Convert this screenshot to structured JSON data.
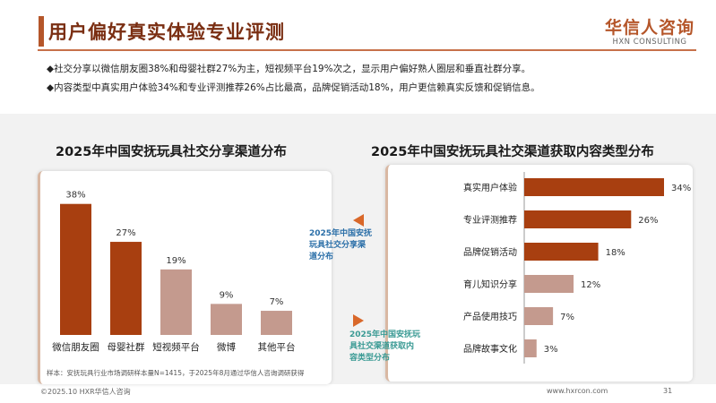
{
  "header": {
    "title": "用户偏好真实体验专业评测",
    "logo_main": "华信人咨询",
    "logo_sub": "HXN CONSULTING"
  },
  "bullets": [
    "◆社交分享以微信朋友圈38%和母婴社群27%为主，短视频平台19%次之，显示用户偏好熟人圈层和垂直社群分享。",
    "◆内容类型中真实用户体验34%和专业评测推荐26%占比最高，品牌促销活动18%，用户更信赖真实反馈和促销信息。"
  ],
  "left_title": "2025年中国安抚玩具社交分享渠道分布",
  "right_title": "2025年中国安抚玩具社交渠道获取内容类型分布",
  "arrow_upper_text": [
    "2025年中国安抚",
    "玩具社交分享渠",
    "道分布"
  ],
  "arrow_lower_text": [
    "2025年中国安抚玩",
    "具社交渠道获取内",
    "容类型分布"
  ],
  "note": "样本：安抚玩具行业市场调研样本量N=1415，于2025年8月通过华信人咨询调研获得",
  "footer": {
    "left": "©2025.10 HXR华信人咨询",
    "url": "www.hxrcon.com",
    "page": "31"
  },
  "chart_data": [
    {
      "type": "bar",
      "title": "2025年中国安抚玩具社交分享渠道分布",
      "categories": [
        "微信朋友圈",
        "母婴社群",
        "短视频平台",
        "微博",
        "其他平台"
      ],
      "values": [
        38,
        27,
        19,
        9,
        7
      ],
      "labels": [
        "38%",
        "27%",
        "19%",
        "9%",
        "7%"
      ],
      "colors": [
        "#a83f10",
        "#a83f10",
        "#c49a8e",
        "#c49a8e",
        "#c49a8e"
      ],
      "ylim": [
        0,
        40
      ]
    },
    {
      "type": "bar",
      "orientation": "horizontal",
      "title": "2025年中国安抚玩具社交渠道获取内容类型分布",
      "categories": [
        "真实用户体验",
        "专业评测推荐",
        "品牌促销活动",
        "育儿知识分享",
        "产品使用技巧",
        "品牌故事文化"
      ],
      "values": [
        34,
        26,
        18,
        12,
        7,
        3
      ],
      "labels": [
        "34%",
        "26%",
        "18%",
        "12%",
        "7%",
        "3%"
      ],
      "colors": [
        "#a83f10",
        "#a83f10",
        "#a83f10",
        "#c49a8e",
        "#c49a8e",
        "#c49a8e"
      ],
      "xlim": [
        0,
        34
      ]
    }
  ]
}
